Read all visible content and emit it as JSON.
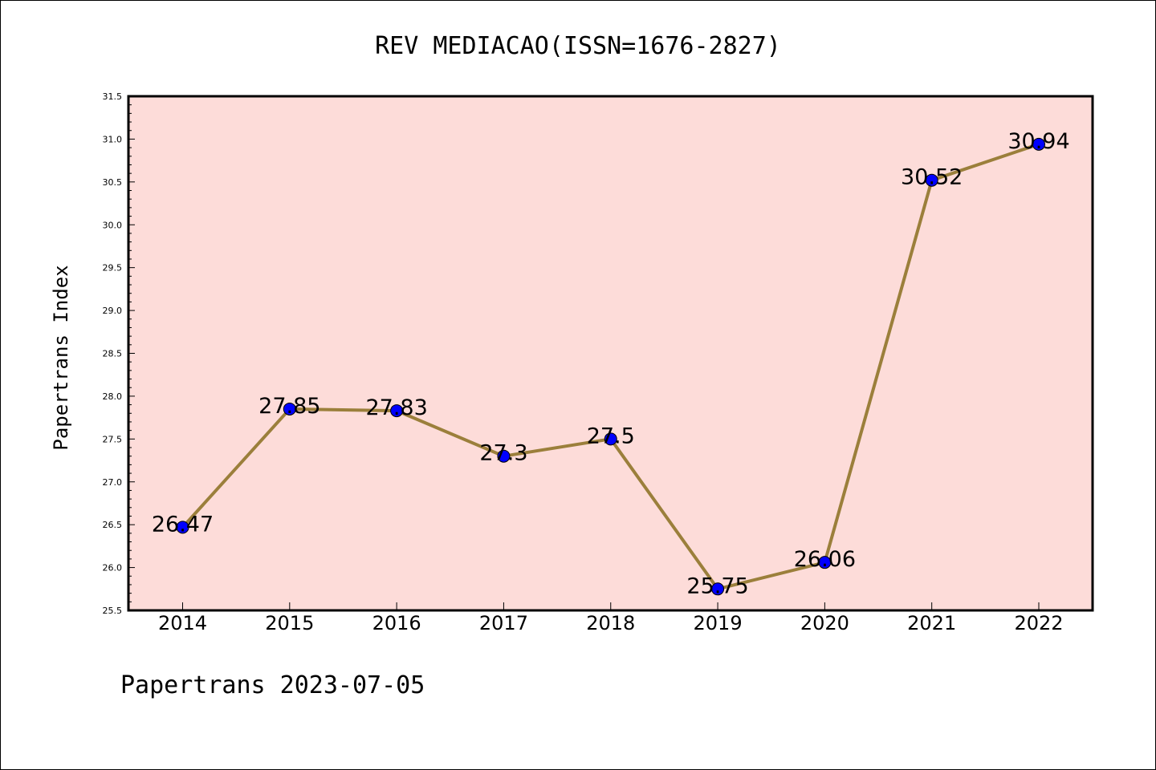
{
  "chart_data": {
    "type": "line",
    "title": "REV MEDIACAO(ISSN=1676-2827)",
    "ylabel": "Papertrans Index",
    "xlabel": "",
    "x": [
      "2014",
      "2015",
      "2016",
      "2017",
      "2018",
      "2019",
      "2020",
      "2021",
      "2022"
    ],
    "values": [
      26.47,
      27.85,
      27.83,
      27.3,
      27.5,
      25.75,
      26.06,
      30.52,
      30.94
    ],
    "data_labels": [
      "26.47",
      "27.85",
      "27.83",
      "27.3",
      "27.5",
      "25.75",
      "26.06",
      "30.52",
      "30.94"
    ],
    "ylim": [
      25.5,
      31.5
    ],
    "yticks": [
      "25.5",
      "26.0",
      "26.5",
      "27.0",
      "27.5",
      "28.0",
      "28.5",
      "29.0",
      "29.5",
      "30.0",
      "30.5",
      "31.0",
      "31.5"
    ],
    "grid": false,
    "legend": "none",
    "colors": {
      "plot_background": "#fddcd9",
      "line": "#9b7f3b",
      "marker": "#0000ff",
      "marker_edge": "#000000"
    }
  },
  "footer": "Papertrans 2023-07-05"
}
